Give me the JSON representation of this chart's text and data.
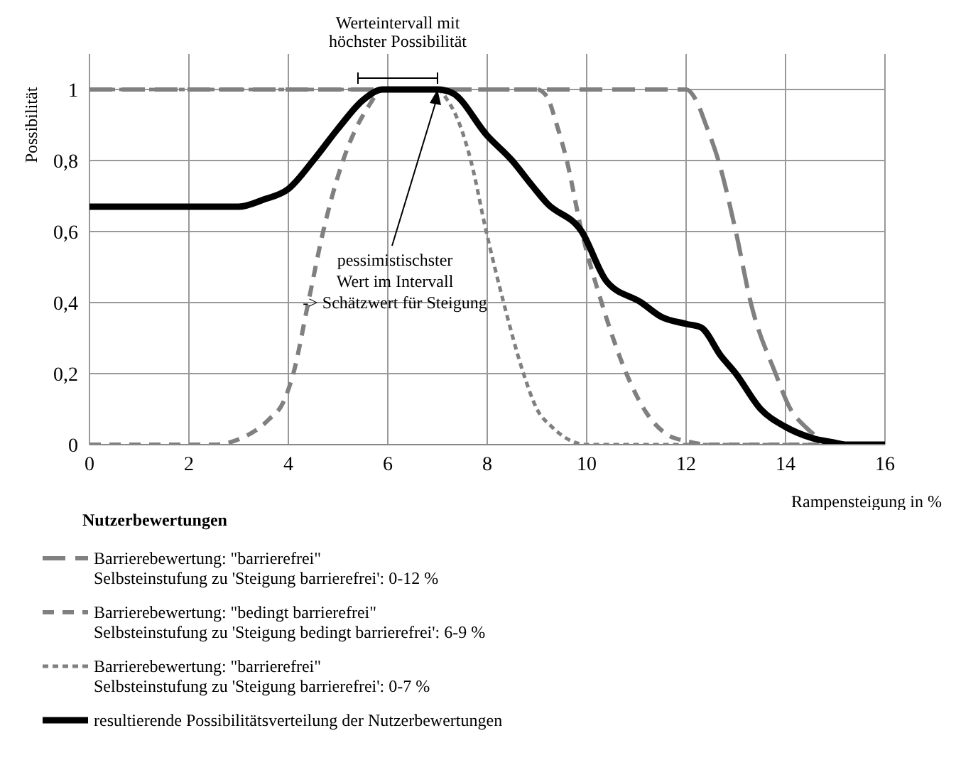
{
  "chart_data": {
    "type": "line",
    "ylabel": "Possibilität",
    "xlabel": "Rampensteigung in %",
    "legend_title": "Nutzerbewertungen",
    "xlim": [
      0,
      16
    ],
    "xticks": [
      0,
      2,
      4,
      6,
      8,
      10,
      12,
      14,
      16
    ],
    "ylim": [
      0,
      1.1
    ],
    "yticks": [
      0,
      {
        "value": 0.2,
        "label": "0,2"
      },
      {
        "value": 0.4,
        "label": "0,4"
      },
      {
        "value": 0.6,
        "label": "0,6"
      },
      {
        "value": 0.8,
        "label": "0,8"
      },
      1
    ],
    "grid": true,
    "legend": "bottom",
    "marker": "none",
    "annotations": [
      "Werteintervall mit\nhöchster Possibilität",
      {
        "text": "pessimistischster\nWert im Intervall\n-> Schätzwert für Steigung",
        "x": 7,
        "y": 1
      }
    ],
    "series": [
      {
        "name": "Barrierebewertung: \"barrierefrei\"\nSelbsteinstufung zu 'Steigung barrierefrei': 0-12 %",
        "color": "#808080",
        "line_style": "long_dashed",
        "x": [
          0,
          12,
          12.2,
          12.4,
          12.65,
          13,
          13.3,
          13.8,
          14.1,
          14.4,
          14.8,
          15.2,
          16
        ],
        "values": [
          1,
          1,
          0.97,
          0.9,
          0.8,
          0.6,
          0.4,
          0.2,
          0.1,
          0.05,
          0.01,
          0,
          0
        ]
      },
      {
        "name": "Barrierebewertung: \"bedingt barrierefrei\"\nSelbsteinstufung zu 'Steigung bedingt barrierefrei': 6-9 %",
        "color": "#808080",
        "line_style": "dashed",
        "x": [
          0,
          2.5,
          3,
          3.6,
          3.9,
          4.1,
          4.4,
          4.7,
          5.1,
          5.6,
          5.9,
          9,
          9.2,
          9.4,
          9.6,
          9.9,
          10.3,
          10.8,
          11.2,
          11.6,
          12,
          12.5,
          16
        ],
        "values": [
          0,
          0,
          0.015,
          0.07,
          0.12,
          0.2,
          0.4,
          0.6,
          0.8,
          0.95,
          1,
          1,
          0.98,
          0.9,
          0.8,
          0.6,
          0.4,
          0.2,
          0.09,
          0.03,
          0.01,
          0,
          0
        ]
      },
      {
        "name": "Barrierebewertung: \"barrierefrei\"\nSelbsteinstufung zu 'Steigung barrierefrei': 0-7 %",
        "color": "#808080",
        "line_style": "dotted",
        "x": [
          0,
          7,
          7.2,
          7.45,
          7.67,
          7.98,
          8.33,
          8.73,
          9,
          9.3,
          9.7,
          10,
          16
        ],
        "values": [
          1,
          1,
          0.97,
          0.9,
          0.8,
          0.6,
          0.4,
          0.2,
          0.1,
          0.05,
          0.01,
          0,
          0
        ]
      },
      {
        "name": "resultierende Possibilitätsverteilung der Nutzerbewertungen",
        "color": "#000000",
        "line_style": "solid",
        "x": [
          0,
          3,
          3.5,
          4,
          4.5,
          5,
          5.5,
          5.9,
          7,
          7.3,
          8,
          8.5,
          8.9,
          9.2,
          9.9,
          10.4,
          11.1,
          11.5,
          12,
          12.3,
          12.7,
          13,
          13.5,
          14,
          14.5,
          15,
          15.2,
          16
        ],
        "values": [
          0.67,
          0.67,
          0.69,
          0.72,
          0.8,
          0.89,
          0.97,
          1,
          1,
          0.99,
          0.87,
          0.8,
          0.73,
          0.68,
          0.6,
          0.46,
          0.4,
          0.36,
          0.34,
          0.33,
          0.25,
          0.2,
          0.1,
          0.05,
          0.02,
          0.005,
          0,
          0
        ]
      }
    ]
  }
}
